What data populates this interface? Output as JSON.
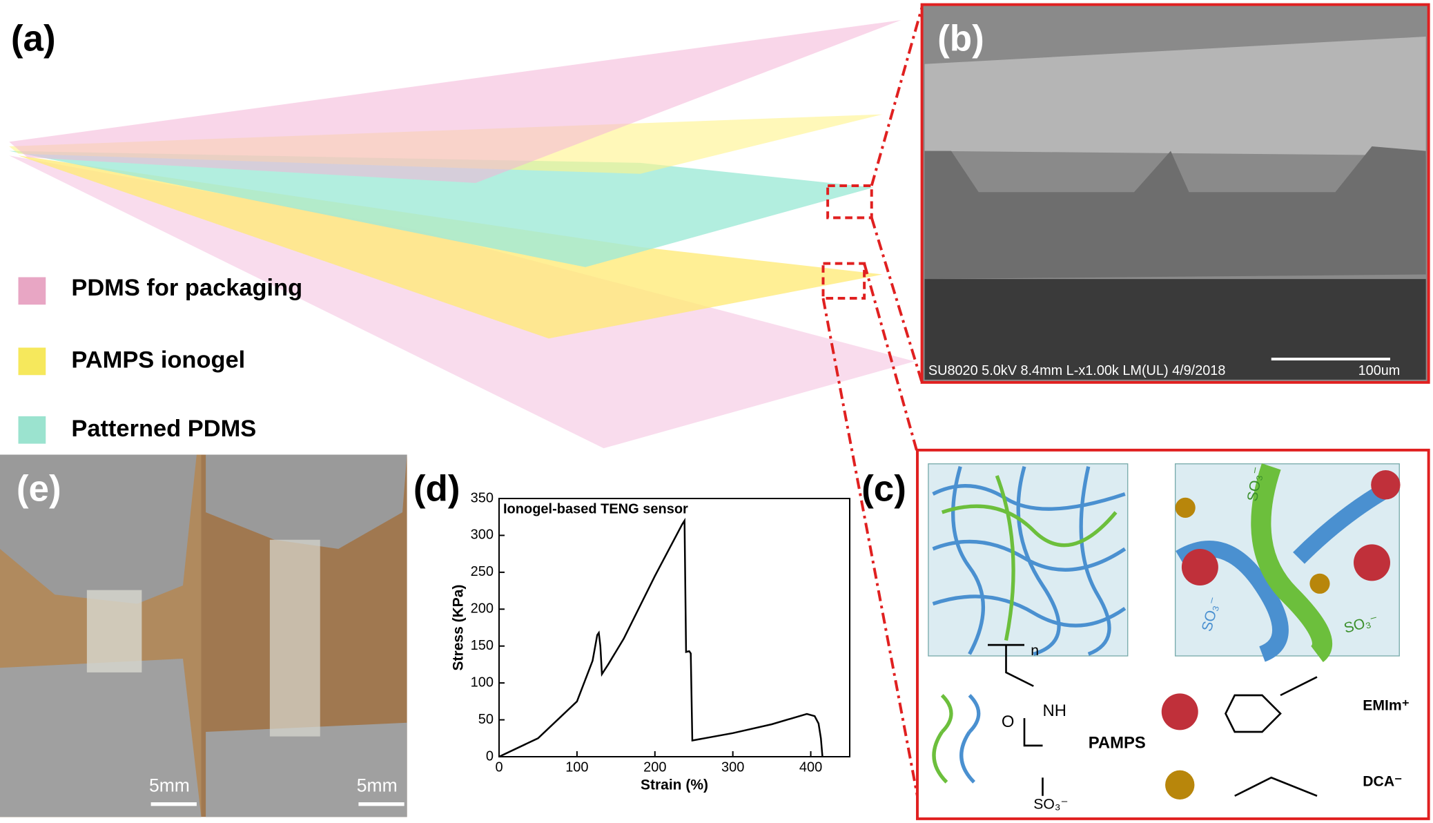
{
  "panels": {
    "a": {
      "label": "(a)",
      "legend": [
        "PDMS for packaging",
        "PAMPS ionogel",
        "Patterned PDMS"
      ]
    },
    "b": {
      "label": "(b)",
      "caption": "SU8020 5.0kV 8.4mm L-x1.00k LM(UL) 4/9/2018",
      "scale_bar": "100um"
    },
    "c": {
      "label": "(c)",
      "polymer": "PAMPS",
      "cation": "EMIm⁺",
      "anion": "DCA⁻",
      "repeat": "n",
      "amide_o": "O",
      "amide_nh": "NH",
      "sulfonate": "SO₃⁻",
      "network_sulfonate": [
        "SO₃⁻",
        "SO₃⁻",
        "SO₃⁻"
      ]
    },
    "d": {
      "label": "(d)"
    },
    "e": {
      "label": "(e)",
      "scale_bars": [
        "5mm",
        "5mm"
      ]
    }
  },
  "chart_data": {
    "type": "line",
    "title": "Ionogel-based TENG sensor",
    "x_label": "Strain (%)",
    "y_label": "Stress (KPa)",
    "color": "#000000",
    "x": [
      0,
      50,
      100,
      120,
      126,
      128,
      130,
      132,
      140,
      160,
      200,
      235,
      238,
      240,
      244,
      246,
      248,
      300,
      350,
      395,
      405,
      410,
      413,
      415
    ],
    "values": [
      0,
      25,
      75,
      130,
      165,
      168,
      150,
      112,
      125,
      160,
      245,
      315,
      320,
      142,
      143,
      140,
      22,
      32,
      44,
      58,
      55,
      45,
      25,
      0
    ],
    "xlim": [
      0,
      450
    ],
    "ylim": [
      0,
      350
    ],
    "xticks": [
      0,
      100,
      200,
      300,
      400
    ],
    "yticks": [
      0,
      50,
      100,
      150,
      200,
      250,
      300,
      350
    ]
  }
}
